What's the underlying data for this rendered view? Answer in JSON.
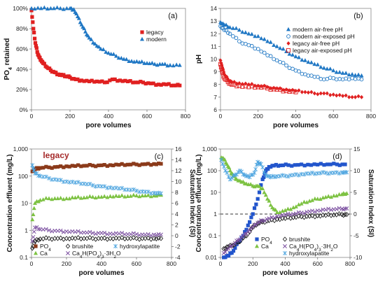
{
  "chart_data": [
    {
      "panel": "(a)",
      "type": "scatter",
      "xlabel": "pore volumes",
      "ylabel": "PO4 retained",
      "xlim": [
        0,
        800
      ],
      "ylim": [
        0,
        100
      ],
      "xticks": [
        "0",
        "200",
        "400",
        "600",
        "800"
      ],
      "yticks": [
        "0%",
        "20%",
        "40%",
        "60%",
        "80%",
        "100%"
      ],
      "legend_position": "top-right",
      "series": [
        {
          "name": "legacy",
          "color": "#e02020",
          "marker": "square",
          "x": [
            0,
            10,
            20,
            30,
            40,
            50,
            60,
            80,
            100,
            120,
            140,
            160,
            180,
            200,
            230,
            260,
            300,
            340,
            380,
            420,
            460,
            500,
            540,
            580,
            620,
            660,
            700,
            740,
            770
          ],
          "y": [
            98,
            80,
            66,
            57,
            52,
            49,
            46,
            42,
            39,
            37,
            35,
            34,
            33,
            32,
            30,
            29,
            28,
            28,
            27,
            30,
            29,
            28,
            27,
            27,
            26,
            25,
            25,
            24,
            24
          ]
        },
        {
          "name": "modern",
          "color": "#1f77c4",
          "marker": "triangle",
          "x": [
            0,
            50,
            100,
            150,
            200,
            220,
            240,
            260,
            280,
            300,
            330,
            360,
            400,
            440,
            480,
            520,
            560,
            600,
            640,
            680,
            720,
            770
          ],
          "y": [
            100,
            100,
            100,
            100,
            100,
            99,
            92,
            84,
            77,
            71,
            65,
            60,
            56,
            53,
            50,
            48,
            47,
            46,
            45,
            45,
            44,
            44
          ]
        }
      ]
    },
    {
      "panel": "(b)",
      "type": "scatter",
      "xlabel": "pore volumes",
      "ylabel": "pH",
      "xlim": [
        0,
        800
      ],
      "ylim": [
        6,
        14
      ],
      "xticks": [
        "0",
        "200",
        "400",
        "600",
        "800"
      ],
      "yticks": [
        "6",
        "7",
        "8",
        "9",
        "10",
        "11",
        "12",
        "13",
        "14"
      ],
      "legend_position": "top-right",
      "series": [
        {
          "name": "modern air-free pH",
          "color": "#1f77c4",
          "marker": "triangle-filled",
          "x": [
            0,
            20,
            50,
            100,
            150,
            200,
            250,
            300,
            350,
            400,
            450,
            500,
            550,
            600,
            650,
            700,
            750
          ],
          "y": [
            12.9,
            12.7,
            12.5,
            12.3,
            12.0,
            11.8,
            11.4,
            11.0,
            10.6,
            10.2,
            9.9,
            9.6,
            9.3,
            9.1,
            8.9,
            8.8,
            8.7
          ]
        },
        {
          "name": "modern air-exposed pH",
          "color": "#1f77c4",
          "marker": "circle-open",
          "x": [
            0,
            20,
            50,
            100,
            150,
            200,
            250,
            300,
            350,
            400,
            450,
            500,
            550,
            600,
            650,
            700,
            750
          ],
          "y": [
            12.6,
            12.3,
            12.0,
            11.4,
            11.1,
            10.8,
            10.3,
            9.9,
            9.5,
            9.1,
            8.8,
            8.6,
            8.4,
            8.5,
            8.4,
            8.5,
            8.4
          ]
        },
        {
          "name": "legacy air-free pH",
          "color": "#e02020",
          "marker": "diamond-filled",
          "x": [
            0,
            10,
            20,
            40,
            60,
            100,
            150,
            200,
            250,
            300,
            350,
            400,
            450,
            500,
            550,
            600,
            650,
            700,
            750
          ],
          "y": [
            9.9,
            9.3,
            8.8,
            8.4,
            8.2,
            8.1,
            8.0,
            7.9,
            7.8,
            7.7,
            7.6,
            7.5,
            7.4,
            7.3,
            7.3,
            7.2,
            7.1,
            7.0,
            7.0
          ]
        },
        {
          "name": "legacy air-exposed pH",
          "color": "#e02020",
          "marker": "square-open",
          "x": [
            0,
            10,
            20,
            40,
            60,
            100,
            150,
            200,
            250,
            300,
            350,
            400
          ],
          "y": [
            9.6,
            9.0,
            8.5,
            8.2,
            8.0,
            7.9,
            7.8,
            7.8,
            7.7,
            7.6,
            7.5,
            7.4
          ]
        }
      ]
    },
    {
      "panel": "(c)",
      "type": "scatter",
      "annotation": "legacy",
      "annotation_color": "#a52a2a",
      "xlabel": "pore volumes",
      "ylabel": "Concentration effluent (mg/L)",
      "y2label": "Saturation Index (SI)",
      "xlim": [
        0,
        800
      ],
      "ylim": [
        0.1,
        1000
      ],
      "yscale": "log",
      "y2lim": [
        -4,
        16
      ],
      "xticks": [
        "0",
        "200",
        "400",
        "600",
        "800"
      ],
      "yticks": [
        "0.1",
        "1",
        "10",
        "100",
        "1,000"
      ],
      "y2ticks": [
        "-4",
        "-2",
        "0",
        "2",
        "4",
        "6",
        "8",
        "10",
        "12",
        "14",
        "16"
      ],
      "legend_position": "bottom",
      "series": [
        {
          "name": "PO4",
          "color": "#8b3a1a",
          "marker": "square",
          "axis": "left",
          "x": [
            5,
            20,
            50,
            100,
            150,
            200,
            250,
            300,
            350,
            400,
            450,
            500,
            550,
            600,
            650,
            700,
            740
          ],
          "y": [
            150,
            180,
            200,
            210,
            220,
            230,
            235,
            240,
            245,
            250,
            255,
            260,
            265,
            270,
            275,
            280,
            285
          ]
        },
        {
          "name": "Ca",
          "color": "#7dc242",
          "marker": "triangle",
          "axis": "left",
          "x": [
            5,
            20,
            50,
            100,
            150,
            200,
            250,
            300,
            350,
            400,
            450,
            500,
            550,
            600,
            650,
            700,
            740
          ],
          "y": [
            2.5,
            10,
            13,
            15,
            15,
            15,
            16,
            16,
            17,
            17,
            18,
            18,
            18,
            19,
            19,
            19,
            20
          ]
        },
        {
          "name": "brushite",
          "color": "#222222",
          "marker": "diamond-open",
          "axis": "right",
          "x": [
            5,
            20,
            50,
            100,
            150,
            200,
            250,
            300,
            350,
            400,
            450,
            500,
            550,
            600,
            650,
            700,
            740
          ],
          "y": [
            -2.3,
            -1.0,
            -0.6,
            -0.5,
            -0.5,
            -0.5,
            -0.5,
            -0.5,
            -0.5,
            -0.5,
            -0.5,
            -0.5,
            -0.5,
            -0.5,
            -0.5,
            -0.5,
            -0.5
          ]
        },
        {
          "name": "Ca4H(PO4)3·3H2O",
          "color": "#7b4fa0",
          "marker": "x",
          "axis": "right",
          "x": [
            5,
            20,
            50,
            100,
            150,
            200,
            250,
            300,
            350,
            400,
            450,
            500,
            550,
            600,
            650,
            700,
            740
          ],
          "y": [
            -1.0,
            1.5,
            1.2,
            1.0,
            0.9,
            0.8,
            0.7,
            0.6,
            0.5,
            0.5,
            0.4,
            0.4,
            0.3,
            0.3,
            0.2,
            0.2,
            0.2
          ]
        },
        {
          "name": "hydroxylapatite",
          "color": "#4aa3df",
          "marker": "star",
          "axis": "right",
          "x": [
            5,
            20,
            50,
            100,
            150,
            200,
            250,
            300,
            350,
            400,
            450,
            500,
            550,
            600,
            650,
            700,
            740
          ],
          "y": [
            13.0,
            11.5,
            11.0,
            10.6,
            10.3,
            10.0,
            9.8,
            9.6,
            9.3,
            9.1,
            8.9,
            8.7,
            8.5,
            8.3,
            8.1,
            7.9,
            7.8
          ]
        }
      ]
    },
    {
      "panel": "(d)",
      "type": "scatter",
      "xlabel": "pore volumes",
      "ylabel": "Concentration effluent (mg/L)",
      "y2label": "Saturation Index (SI)",
      "xlim": [
        0,
        800
      ],
      "ylim": [
        0.01,
        1000
      ],
      "yscale": "log",
      "y2lim": [
        -10,
        15
      ],
      "xticks": [
        "0",
        "200",
        "400",
        "600",
        "800"
      ],
      "yticks": [
        "0.01",
        "0.1",
        "1",
        "10",
        "100",
        "1,000"
      ],
      "y2ticks": [
        "-10",
        "-5",
        "0",
        "5",
        "10",
        "15"
      ],
      "reference_line": {
        "axis": "right",
        "value": 0,
        "style": "dashed"
      },
      "legend_position": "bottom-right",
      "series": [
        {
          "name": "PO4",
          "color": "#2255cc",
          "marker": "square",
          "axis": "left",
          "x": [
            20,
            50,
            80,
            110,
            140,
            170,
            200,
            230,
            260,
            280,
            300,
            330,
            370,
            420,
            480,
            540,
            600,
            660,
            720,
            770
          ],
          "y": [
            0.01,
            0.012,
            0.02,
            0.05,
            0.1,
            0.3,
            1.0,
            5,
            40,
            100,
            150,
            170,
            175,
            180,
            185,
            190,
            190,
            195,
            195,
            195
          ]
        },
        {
          "name": "Ca",
          "color": "#7dc242",
          "marker": "triangle",
          "axis": "left",
          "x": [
            5,
            20,
            40,
            60,
            80,
            100,
            130,
            160,
            200,
            230,
            260,
            290,
            320,
            350,
            400,
            450,
            500,
            550,
            600,
            650,
            700,
            750,
            780
          ],
          "y": [
            400,
            350,
            200,
            100,
            60,
            40,
            30,
            25,
            20,
            20,
            15,
            5,
            2,
            1.2,
            1.5,
            2,
            3,
            4,
            5,
            6,
            7,
            8,
            9
          ]
        },
        {
          "name": "brushite",
          "color": "#222222",
          "marker": "diamond-open",
          "axis": "right",
          "x": [
            20,
            50,
            80,
            110,
            140,
            170,
            200,
            230,
            260,
            300,
            350,
            400,
            450,
            500,
            550,
            600,
            650,
            700,
            750,
            780
          ],
          "y": [
            -8.0,
            -7.5,
            -7.2,
            -6.5,
            -5.5,
            -4.5,
            -3.0,
            -2.2,
            -1.8,
            -1.5,
            -1.2,
            -1.0,
            -0.8,
            -0.6,
            -0.5,
            -0.4,
            -0.3,
            -0.2,
            -0.1,
            -0.1
          ]
        },
        {
          "name": "Ca4H(PO4)3·3H2O",
          "color": "#7b4fa0",
          "marker": "x",
          "axis": "right",
          "x": [
            20,
            50,
            80,
            110,
            140,
            170,
            200,
            230,
            260,
            300,
            350,
            400,
            450,
            500,
            550,
            600,
            650,
            700,
            750,
            780
          ],
          "y": [
            -9.0,
            -8.0,
            -7.0,
            -6.0,
            -5.0,
            -4.0,
            -3.0,
            -2.0,
            -1.5,
            -1.0,
            -0.5,
            -0.2,
            0.0,
            0.3,
            0.6,
            0.8,
            1.0,
            1.1,
            1.2,
            1.3
          ]
        },
        {
          "name": "hydroxylapatite",
          "color": "#4aa3df",
          "marker": "star",
          "axis": "right",
          "x": [
            5,
            30,
            60,
            90,
            120,
            150,
            180,
            210,
            230,
            250,
            280,
            310,
            350,
            400,
            450,
            500,
            550,
            600,
            650,
            700,
            750,
            780
          ],
          "y": [
            12.5,
            10.0,
            8.0,
            9.0,
            10.0,
            9.0,
            8.5,
            9.5,
            12.0,
            11.5,
            9.0,
            8.5,
            8.7,
            8.8,
            9.0,
            9.2,
            9.3,
            9.4,
            9.5,
            9.5,
            9.6,
            9.6
          ]
        }
      ]
    }
  ]
}
